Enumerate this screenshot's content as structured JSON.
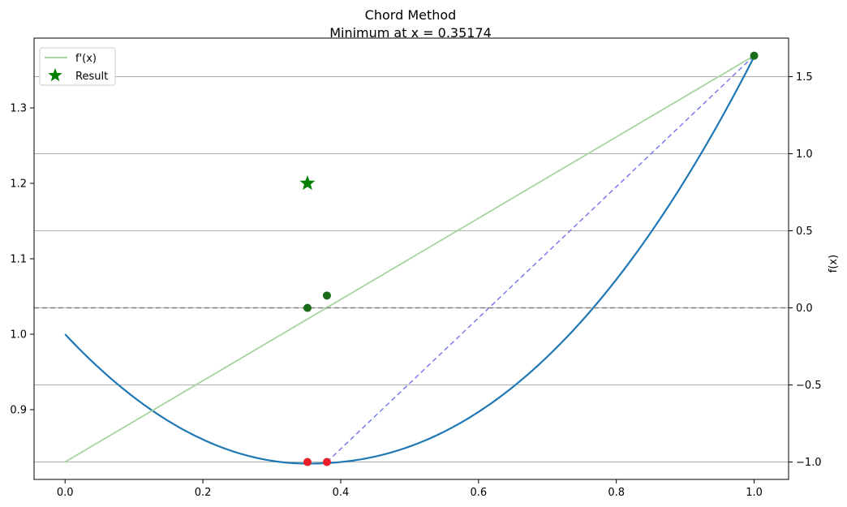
{
  "chart_data": {
    "type": "line",
    "title": "Chord Method",
    "subtitle": "Minimum at x = 0.35174",
    "xlabel": "",
    "ylabel_left": "",
    "ylabel_right": "f(x)",
    "xlim": [
      -0.045,
      1.05
    ],
    "ylim_left": [
      0.8075,
      1.3925
    ],
    "ylim_right": [
      -1.113,
      1.75
    ],
    "x_ticks": [
      0.0,
      0.2,
      0.4,
      0.6,
      0.8,
      1.0
    ],
    "x_tick_labels": [
      "0.0",
      "0.2",
      "0.4",
      "0.6",
      "0.8",
      "1.0"
    ],
    "y_left_ticks": [
      0.9,
      1.0,
      1.1,
      1.2,
      1.3
    ],
    "y_left_tick_labels": [
      "0.9",
      "1.0",
      "1.1",
      "1.2",
      "1.3"
    ],
    "y_right_ticks": [
      -1.0,
      -0.5,
      0.0,
      0.5,
      1.0,
      1.5
    ],
    "y_right_tick_labels": [
      "−1.0",
      "−0.5",
      "0.0",
      "0.5",
      "1.0",
      "1.5"
    ],
    "grid": "horizontal on right axis",
    "legend_placement": "upper-left",
    "legend": [
      {
        "label": "f'(x)",
        "marker": "line",
        "color": "#a6d5a0"
      },
      {
        "label": "Result",
        "marker": "star",
        "color": "#008000"
      }
    ],
    "series": [
      {
        "name": "f(x)",
        "axis": "left",
        "style": "line",
        "color": "#1f77b4",
        "x": [
          0.0,
          0.05,
          0.1,
          0.15,
          0.2,
          0.25,
          0.3,
          0.35,
          0.4,
          0.45,
          0.5,
          0.55,
          0.6,
          0.65,
          0.7,
          0.75,
          0.8,
          0.85,
          0.9,
          0.95,
          1.0
        ],
        "y": [
          1.0,
          0.9575,
          0.9231,
          0.8963,
          0.8767,
          0.8638,
          0.8572,
          0.8563,
          0.8608,
          0.8701,
          0.8838,
          0.9013,
          0.9223,
          0.9463,
          0.9729,
          1.0015,
          1.0319,
          1.0635,
          1.0959,
          1.1288,
          1.3679
        ]
      },
      {
        "name": "f'(x)",
        "axis": "right",
        "style": "line",
        "color": "#a6d5a0",
        "x": [
          0.0,
          1.0
        ],
        "y": [
          -1.0,
          1.636
        ]
      },
      {
        "name": "chord",
        "axis": "right",
        "style": "dashed",
        "color": "#7b7bef",
        "x": [
          0.38,
          1.0
        ],
        "y": [
          -1.0,
          1.636
        ]
      },
      {
        "name": "zero line",
        "axis": "right",
        "style": "dashed",
        "color": "#808080",
        "x": [
          -0.045,
          1.05
        ],
        "y": [
          0.0,
          0.0
        ]
      }
    ],
    "points": [
      {
        "name": "iterate-red-1",
        "axis": "right",
        "x": 0.35174,
        "y": -1.0,
        "color": "#e8202a"
      },
      {
        "name": "iterate-red-2",
        "axis": "right",
        "x": 0.38,
        "y": -1.0,
        "color": "#e8202a"
      },
      {
        "name": "iterate-green-1",
        "axis": "right",
        "x": 0.35174,
        "y": 0.0,
        "color": "#1a6b1a"
      },
      {
        "name": "iterate-green-2",
        "axis": "right",
        "x": 0.38,
        "y": 0.08,
        "color": "#1a6b1a"
      },
      {
        "name": "endpoint-green",
        "axis": "right",
        "x": 1.0,
        "y": 1.636,
        "color": "#1a6b1a"
      }
    ],
    "result": {
      "x": 0.35174,
      "y": 1.2,
      "axis": "left",
      "color": "#008000"
    }
  }
}
